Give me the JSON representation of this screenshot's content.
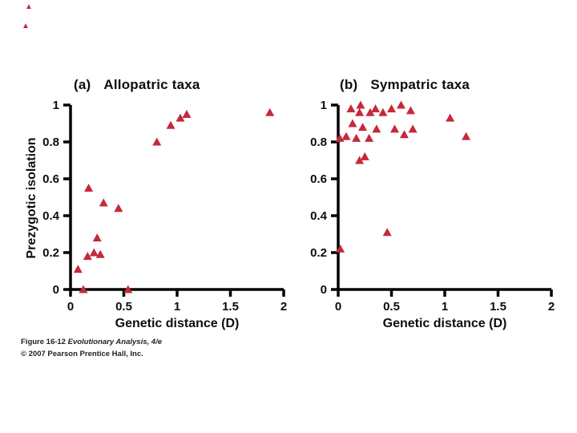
{
  "figure": {
    "ylabel": "Prezygotic isolation",
    "marker_color": "#c5293a",
    "caption_prefix": "Figure 16-12",
    "caption_title": "Evolutionary Analysis, 4/e",
    "caption_copyright": "© 2007 Pearson Prentice Hall, Inc.",
    "corner_mark_glyph": "▲"
  },
  "chart_data": [
    {
      "type": "scatter",
      "panel_tag": "(a)",
      "title": "Allopatric taxa",
      "xlabel": "Genetic distance (D)",
      "ylabel": "Prezygotic isolation",
      "xlim": [
        0,
        2
      ],
      "ylim": [
        0,
        1
      ],
      "xticks": [
        0,
        0.5,
        1,
        1.5,
        2
      ],
      "xtick_labels": [
        "0",
        "0.5",
        "1",
        "1.5",
        "2"
      ],
      "yticks": [
        0,
        0.2,
        0.4,
        0.6,
        0.8,
        1
      ],
      "ytick_labels": [
        "0",
        "0.2",
        "0.4",
        "0.6",
        "0.8",
        "1"
      ],
      "legend": "none",
      "grid": false,
      "marker": "triangle",
      "marker_color": "#c5293a",
      "points": [
        [
          0.07,
          0.11
        ],
        [
          0.12,
          0.0
        ],
        [
          0.17,
          0.55
        ],
        [
          0.16,
          0.18
        ],
        [
          0.22,
          0.2
        ],
        [
          0.28,
          0.19
        ],
        [
          0.25,
          0.28
        ],
        [
          0.31,
          0.47
        ],
        [
          0.45,
          0.44
        ],
        [
          0.54,
          0.0
        ],
        [
          0.81,
          0.8
        ],
        [
          0.94,
          0.89
        ],
        [
          1.03,
          0.93
        ],
        [
          1.09,
          0.95
        ],
        [
          1.87,
          0.96
        ]
      ]
    },
    {
      "type": "scatter",
      "panel_tag": "(b)",
      "title": "Sympatric taxa",
      "xlabel": "Genetic distance (D)",
      "ylabel": "Prezygotic isolation",
      "xlim": [
        0,
        2
      ],
      "ylim": [
        0,
        1
      ],
      "xticks": [
        0,
        0.5,
        1,
        1.5,
        2
      ],
      "xtick_labels": [
        "0",
        "0.5",
        "1",
        "1.5",
        "2"
      ],
      "yticks": [
        0,
        0.2,
        0.4,
        0.6,
        0.8,
        1
      ],
      "ytick_labels": [
        "0",
        "0.2",
        "0.4",
        "0.6",
        "0.8",
        "1"
      ],
      "legend": "none",
      "grid": false,
      "marker": "triangle",
      "marker_color": "#c5293a",
      "points": [
        [
          0.02,
          0.22
        ],
        [
          0.015,
          0.82
        ],
        [
          0.075,
          0.83
        ],
        [
          0.12,
          0.98
        ],
        [
          0.135,
          0.9
        ],
        [
          0.17,
          0.82
        ],
        [
          0.2,
          0.96
        ],
        [
          0.21,
          1.0
        ],
        [
          0.23,
          0.88
        ],
        [
          0.2,
          0.7
        ],
        [
          0.25,
          0.72
        ],
        [
          0.29,
          0.82
        ],
        [
          0.3,
          0.96
        ],
        [
          0.35,
          0.98
        ],
        [
          0.36,
          0.87
        ],
        [
          0.42,
          0.96
        ],
        [
          0.46,
          0.31
        ],
        [
          0.5,
          0.98
        ],
        [
          0.53,
          0.87
        ],
        [
          0.59,
          1.0
        ],
        [
          0.62,
          0.84
        ],
        [
          0.68,
          0.97
        ],
        [
          0.7,
          0.87
        ],
        [
          1.05,
          0.93
        ],
        [
          1.2,
          0.83
        ]
      ]
    }
  ]
}
